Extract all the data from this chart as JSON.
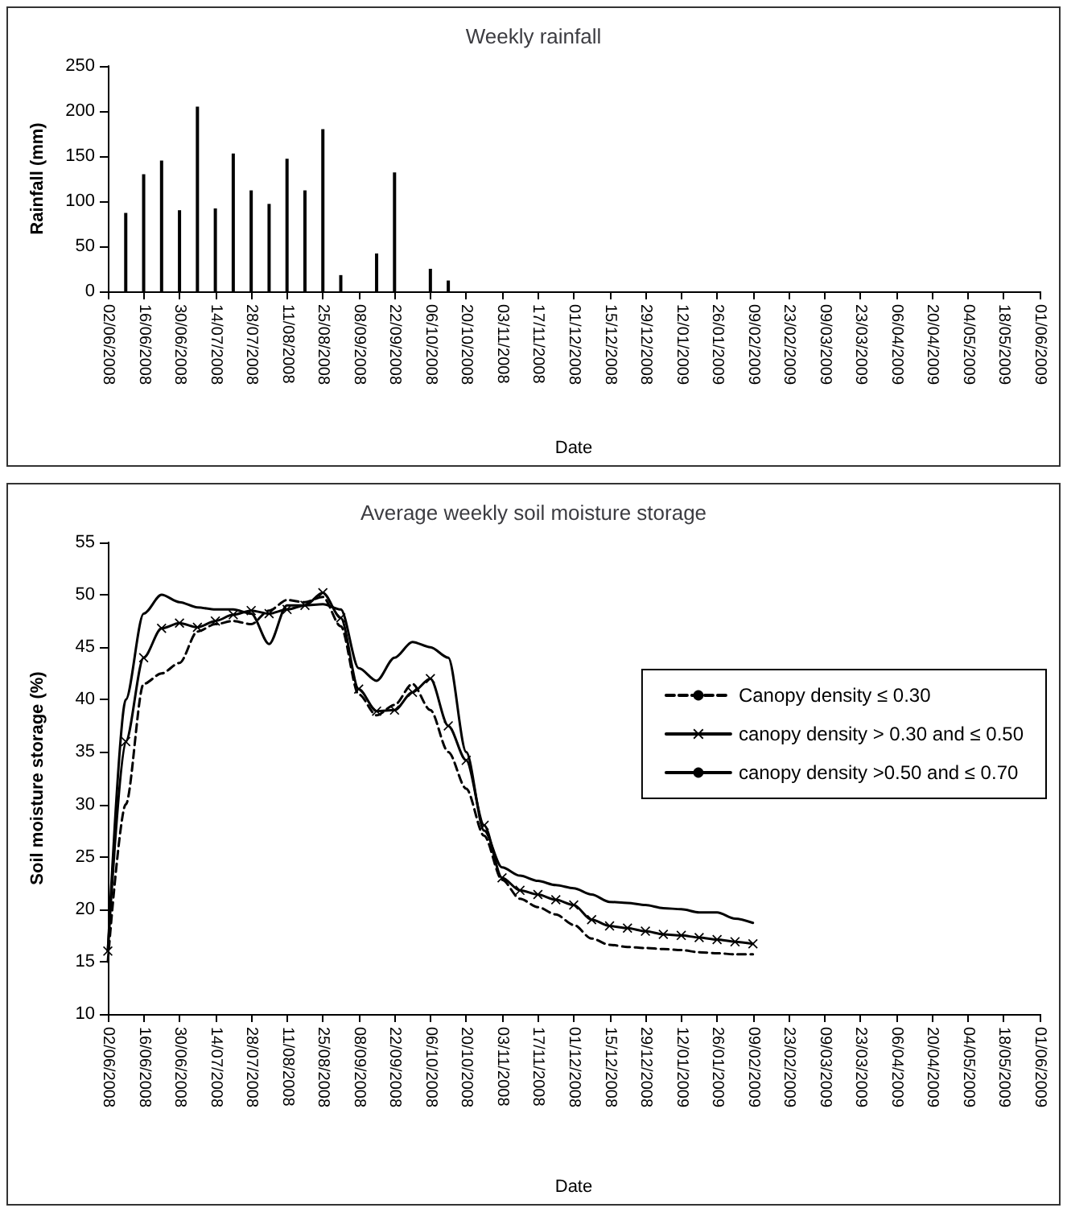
{
  "chart_data": [
    {
      "type": "bar",
      "title": "Weekly rainfall",
      "xlabel": "Date",
      "ylabel": "Rainfall (mm)",
      "x": [
        "2008-06-09",
        "2008-06-16",
        "2008-06-23",
        "2008-06-30",
        "2008-07-07",
        "2008-07-14",
        "2008-07-21",
        "2008-07-28",
        "2008-08-04",
        "2008-08-11",
        "2008-08-18",
        "2008-08-25",
        "2008-09-01",
        "2008-09-15",
        "2008-09-22",
        "2008-10-06",
        "2008-10-13"
      ],
      "values": [
        87,
        130,
        145,
        90,
        205,
        92,
        153,
        112,
        97,
        147,
        112,
        180,
        18,
        42,
        132,
        25,
        12
      ],
      "color": "#000000",
      "xlim": [
        "2008-06-02",
        "2009-06-01"
      ],
      "xticks": [
        {
          "value": "2008-06-02",
          "label": "02/06/2008"
        },
        {
          "value": "2008-06-16",
          "label": "16/06/2008"
        },
        {
          "value": "2008-06-30",
          "label": "30/06/2008"
        },
        {
          "value": "2008-07-14",
          "label": "14/07/2008"
        },
        {
          "value": "2008-07-28",
          "label": "28/07/2008"
        },
        {
          "value": "2008-08-11",
          "label": "11/08/2008"
        },
        {
          "value": "2008-08-25",
          "label": "25/08/2008"
        },
        {
          "value": "2008-09-08",
          "label": "08/09/2008"
        },
        {
          "value": "2008-09-22",
          "label": "22/09/2008"
        },
        {
          "value": "2008-10-06",
          "label": "06/10/2008"
        },
        {
          "value": "2008-10-20",
          "label": "20/10/2008"
        },
        {
          "value": "2008-11-03",
          "label": "03/11/2008"
        },
        {
          "value": "2008-11-17",
          "label": "17/11/2008"
        },
        {
          "value": "2008-12-01",
          "label": "01/12/2008"
        },
        {
          "value": "2008-12-15",
          "label": "15/12/2008"
        },
        {
          "value": "2008-12-29",
          "label": "29/12/2008"
        },
        {
          "value": "2009-01-12",
          "label": "12/01/2009"
        },
        {
          "value": "2009-01-26",
          "label": "26/01/2009"
        },
        {
          "value": "2009-02-09",
          "label": "09/02/2009"
        },
        {
          "value": "2009-02-23",
          "label": "23/02/2009"
        },
        {
          "value": "2009-03-09",
          "label": "09/03/2009"
        },
        {
          "value": "2009-03-23",
          "label": "23/03/2009"
        },
        {
          "value": "2009-04-06",
          "label": "06/04/2009"
        },
        {
          "value": "2009-04-20",
          "label": "20/04/2009"
        },
        {
          "value": "2009-05-04",
          "label": "04/05/2009"
        },
        {
          "value": "2009-05-18",
          "label": "18/05/2009"
        },
        {
          "value": "2009-06-01",
          "label": "01/06/2009"
        }
      ],
      "ylim": [
        0,
        250
      ],
      "yticks": [
        0,
        50,
        100,
        150,
        200,
        250
      ]
    },
    {
      "type": "line",
      "title": "Average weekly soil moisture storage",
      "xlabel": "Date",
      "ylabel": "Soil moisture storage (%)",
      "x": [
        "2008-06-02",
        "2008-06-09",
        "2008-06-16",
        "2008-06-23",
        "2008-06-30",
        "2008-07-07",
        "2008-07-14",
        "2008-07-21",
        "2008-07-28",
        "2008-08-04",
        "2008-08-11",
        "2008-08-18",
        "2008-08-25",
        "2008-09-01",
        "2008-09-08",
        "2008-09-15",
        "2008-09-22",
        "2008-09-29",
        "2008-10-06",
        "2008-10-13",
        "2008-10-20",
        "2008-10-27",
        "2008-11-03",
        "2008-11-10",
        "2008-11-17",
        "2008-11-24",
        "2008-12-01",
        "2008-12-08",
        "2008-12-15",
        "2008-12-22",
        "2008-12-29",
        "2009-01-05",
        "2009-01-12",
        "2009-01-19",
        "2009-01-26",
        "2009-02-02",
        "2009-02-09"
      ],
      "series": [
        {
          "name": "Canopy density ≤ 0.30",
          "color": "#000000",
          "line_style": "dashed",
          "marker": "none",
          "values": [
            15,
            30,
            41.5,
            42.5,
            43.5,
            46.5,
            47.2,
            47.5,
            47.2,
            48.5,
            49.5,
            49.3,
            49.8,
            47,
            40.5,
            38.5,
            39.5,
            41.5,
            39,
            35,
            31.5,
            27,
            22.8,
            21,
            20.2,
            19.5,
            18.5,
            17.2,
            16.6,
            16.4,
            16.3,
            16.2,
            16.1,
            15.9,
            15.8,
            15.7,
            15.7
          ]
        },
        {
          "name": "canopy density > 0.30 and ≤ 0.50",
          "color": "#000000",
          "line_style": "solid",
          "marker": "cross",
          "values": [
            16,
            36,
            44,
            46.8,
            47.3,
            46.9,
            47.5,
            48.1,
            48.5,
            48.2,
            48.6,
            49,
            50.2,
            47.8,
            41,
            38.9,
            39,
            40.7,
            42,
            37.5,
            34.2,
            28,
            23,
            21.8,
            21.4,
            20.9,
            20.4,
            19,
            18.4,
            18.2,
            17.9,
            17.6,
            17.5,
            17.3,
            17.1,
            16.9,
            16.7
          ]
        },
        {
          "name": "canopy density >0.50 and ≤ 0.70",
          "color": "#000000",
          "line_style": "solid",
          "marker": "none",
          "values": [
            16,
            40,
            48.2,
            50,
            49.3,
            48.8,
            48.6,
            48.6,
            48.2,
            45.3,
            49,
            49,
            49.1,
            48.6,
            43,
            41.8,
            44,
            45.5,
            45,
            44,
            35,
            27.5,
            24,
            23.2,
            22.7,
            22.3,
            22,
            21.4,
            20.7,
            20.6,
            20.4,
            20.1,
            20,
            19.7,
            19.7,
            19.1,
            18.7
          ]
        }
      ],
      "legend": "right",
      "xlim": [
        "2008-06-02",
        "2009-06-01"
      ],
      "xticks": [
        {
          "value": "2008-06-02",
          "label": "02/06/2008"
        },
        {
          "value": "2008-06-16",
          "label": "16/06/2008"
        },
        {
          "value": "2008-06-30",
          "label": "30/06/2008"
        },
        {
          "value": "2008-07-14",
          "label": "14/07/2008"
        },
        {
          "value": "2008-07-28",
          "label": "28/07/2008"
        },
        {
          "value": "2008-08-11",
          "label": "11/08/2008"
        },
        {
          "value": "2008-08-25",
          "label": "25/08/2008"
        },
        {
          "value": "2008-09-08",
          "label": "08/09/2008"
        },
        {
          "value": "2008-09-22",
          "label": "22/09/2008"
        },
        {
          "value": "2008-10-06",
          "label": "06/10/2008"
        },
        {
          "value": "2008-10-20",
          "label": "20/10/2008"
        },
        {
          "value": "2008-11-03",
          "label": "03/11/2008"
        },
        {
          "value": "2008-11-17",
          "label": "17/11/2008"
        },
        {
          "value": "2008-12-01",
          "label": "01/12/2008"
        },
        {
          "value": "2008-12-15",
          "label": "15/12/2008"
        },
        {
          "value": "2008-12-29",
          "label": "29/12/2008"
        },
        {
          "value": "2009-01-12",
          "label": "12/01/2009"
        },
        {
          "value": "2009-01-26",
          "label": "26/01/2009"
        },
        {
          "value": "2009-02-09",
          "label": "09/02/2009"
        },
        {
          "value": "2009-02-23",
          "label": "23/02/2009"
        },
        {
          "value": "2009-03-09",
          "label": "09/03/2009"
        },
        {
          "value": "2009-03-23",
          "label": "23/03/2009"
        },
        {
          "value": "2009-04-06",
          "label": "06/04/2009"
        },
        {
          "value": "2009-04-20",
          "label": "20/04/2009"
        },
        {
          "value": "2009-05-04",
          "label": "04/05/2009"
        },
        {
          "value": "2009-05-18",
          "label": "18/05/2009"
        },
        {
          "value": "2009-06-01",
          "label": "01/06/2009"
        }
      ],
      "ylim": [
        10,
        55
      ],
      "yticks": [
        10,
        15,
        20,
        25,
        30,
        35,
        40,
        45,
        50,
        55
      ]
    }
  ]
}
